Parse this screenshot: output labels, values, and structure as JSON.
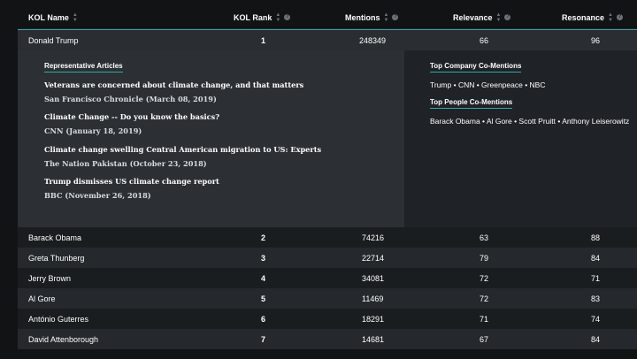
{
  "columns": {
    "name": "KOL Name",
    "rank": "KOL Rank",
    "mentions": "Mentions",
    "relevance": "Relevance",
    "resonance": "Resonance"
  },
  "icons": {
    "sort": "sort-icon",
    "help": "help-circle-icon"
  },
  "colors": {
    "accent": "#2fa9a9",
    "header_bg": "#111315",
    "panel_bg": "#2c3034"
  },
  "selected_row": {
    "name": "Donald Trump",
    "rank": "1",
    "mentions": "248349",
    "relevance": "66",
    "resonance": "96"
  },
  "details": {
    "articles_title": "Representative Articles",
    "articles": [
      {
        "title": "Veterans are concerned about climate change, and that matters",
        "source": "San Francisco Chronicle (March 08, 2019)"
      },
      {
        "title": "Climate Change -- Do you know the basics?",
        "source": "CNN (January 18, 2019)"
      },
      {
        "title": "Climate change swelling Central American migration to US: Experts",
        "source": "The Nation Pakistan (October 23, 2018)"
      },
      {
        "title": "Trump dismisses US climate change report",
        "source": "BBC (November 26, 2018)"
      }
    ],
    "company_title": "Top Company Co-Mentions",
    "company_list": "Trump • CNN • Greenpeace • NBC",
    "people_title": "Top People Co-Mentions",
    "people_list": "Barack Obama • Al Gore • Scott Pruitt • Anthony Leiserowitz"
  },
  "rows": [
    {
      "name": "Barack Obama",
      "rank": "2",
      "mentions": "74216",
      "relevance": "63",
      "resonance": "88"
    },
    {
      "name": "Greta Thunberg",
      "rank": "3",
      "mentions": "22714",
      "relevance": "79",
      "resonance": "84"
    },
    {
      "name": "Jerry Brown",
      "rank": "4",
      "mentions": "34081",
      "relevance": "72",
      "resonance": "71"
    },
    {
      "name": "Al Gore",
      "rank": "5",
      "mentions": "11469",
      "relevance": "72",
      "resonance": "83"
    },
    {
      "name": "António Guterres",
      "rank": "6",
      "mentions": "18291",
      "relevance": "71",
      "resonance": "74"
    },
    {
      "name": "David Attenborough",
      "rank": "7",
      "mentions": "14681",
      "relevance": "67",
      "resonance": "84"
    }
  ]
}
